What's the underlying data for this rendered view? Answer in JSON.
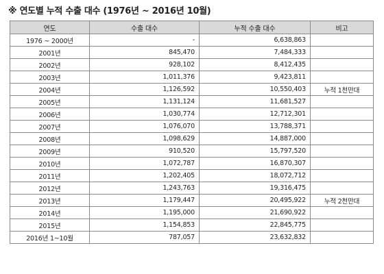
{
  "title": "※ 연도별 누적 수출 대수 (1976년 ~ 2016년 10월)",
  "table": {
    "headers": [
      "연도",
      "수출 대수",
      "누적 수출 대수",
      "비고"
    ],
    "rows": [
      {
        "year": "1976 ~ 2000년",
        "exports": "-",
        "cumulative": "6,638,863",
        "note": ""
      },
      {
        "year": "2001년",
        "exports": "845,470",
        "cumulative": "7,484,333",
        "note": ""
      },
      {
        "year": "2002년",
        "exports": "928,102",
        "cumulative": "8,412,435",
        "note": ""
      },
      {
        "year": "2003년",
        "exports": "1,011,376",
        "cumulative": "9,423,811",
        "note": ""
      },
      {
        "year": "2004년",
        "exports": "1,126,592",
        "cumulative": "10,550,403",
        "note": "누적 1천만대"
      },
      {
        "year": "2005년",
        "exports": "1,131,124",
        "cumulative": "11,681,527",
        "note": ""
      },
      {
        "year": "2006년",
        "exports": "1,030,774",
        "cumulative": "12,712,301",
        "note": ""
      },
      {
        "year": "2007년",
        "exports": "1,076,070",
        "cumulative": "13,788,371",
        "note": ""
      },
      {
        "year": "2008년",
        "exports": "1,098,629",
        "cumulative": "14,887,000",
        "note": ""
      },
      {
        "year": "2009년",
        "exports": "910,520",
        "cumulative": "15,797,520",
        "note": ""
      },
      {
        "year": "2010년",
        "exports": "1,072,787",
        "cumulative": "16,870,307",
        "note": ""
      },
      {
        "year": "2011년",
        "exports": "1,202,405",
        "cumulative": "18,072,712",
        "note": ""
      },
      {
        "year": "2012년",
        "exports": "1,243,763",
        "cumulative": "19,316,475",
        "note": ""
      },
      {
        "year": "2013년",
        "exports": "1,179,447",
        "cumulative": "20,495,922",
        "note": "누적 2천만대"
      },
      {
        "year": "2014년",
        "exports": "1,195,000",
        "cumulative": "21,690,922",
        "note": ""
      },
      {
        "year": "2015년",
        "exports": "1,154,853",
        "cumulative": "22,845,775",
        "note": ""
      },
      {
        "year": "2016년 1~10월",
        "exports": "787,057",
        "cumulative": "23,632,832",
        "note": ""
      }
    ]
  }
}
